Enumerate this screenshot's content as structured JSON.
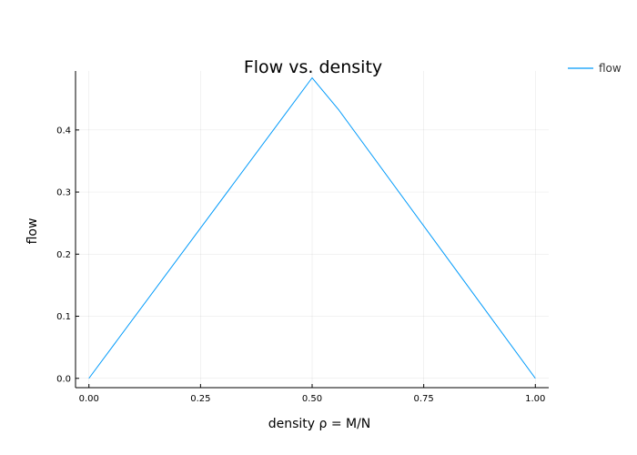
{
  "chart_data": {
    "type": "line",
    "title": "Flow vs. density",
    "xlabel": "density ρ = M/N",
    "ylabel": "flow",
    "xlim": [
      -0.03,
      1.03
    ],
    "ylim": [
      -0.015,
      0.495
    ],
    "xticks": [
      0.0,
      0.25,
      0.5,
      0.75,
      1.0
    ],
    "xtick_labels": [
      "0.00",
      "0.25",
      "0.50",
      "0.75",
      "1.00"
    ],
    "yticks": [
      0.0,
      0.1,
      0.2,
      0.3,
      0.4
    ],
    "ytick_labels": [
      "0.0",
      "0.1",
      "0.2",
      "0.3",
      "0.4"
    ],
    "grid": true,
    "legend": "top-right-outside",
    "series": [
      {
        "name": "flow",
        "color": "#009AFA",
        "x": [
          0.0,
          0.5,
          0.56,
          1.0
        ],
        "y": [
          0.0,
          0.484,
          0.432,
          0.0
        ]
      }
    ]
  }
}
